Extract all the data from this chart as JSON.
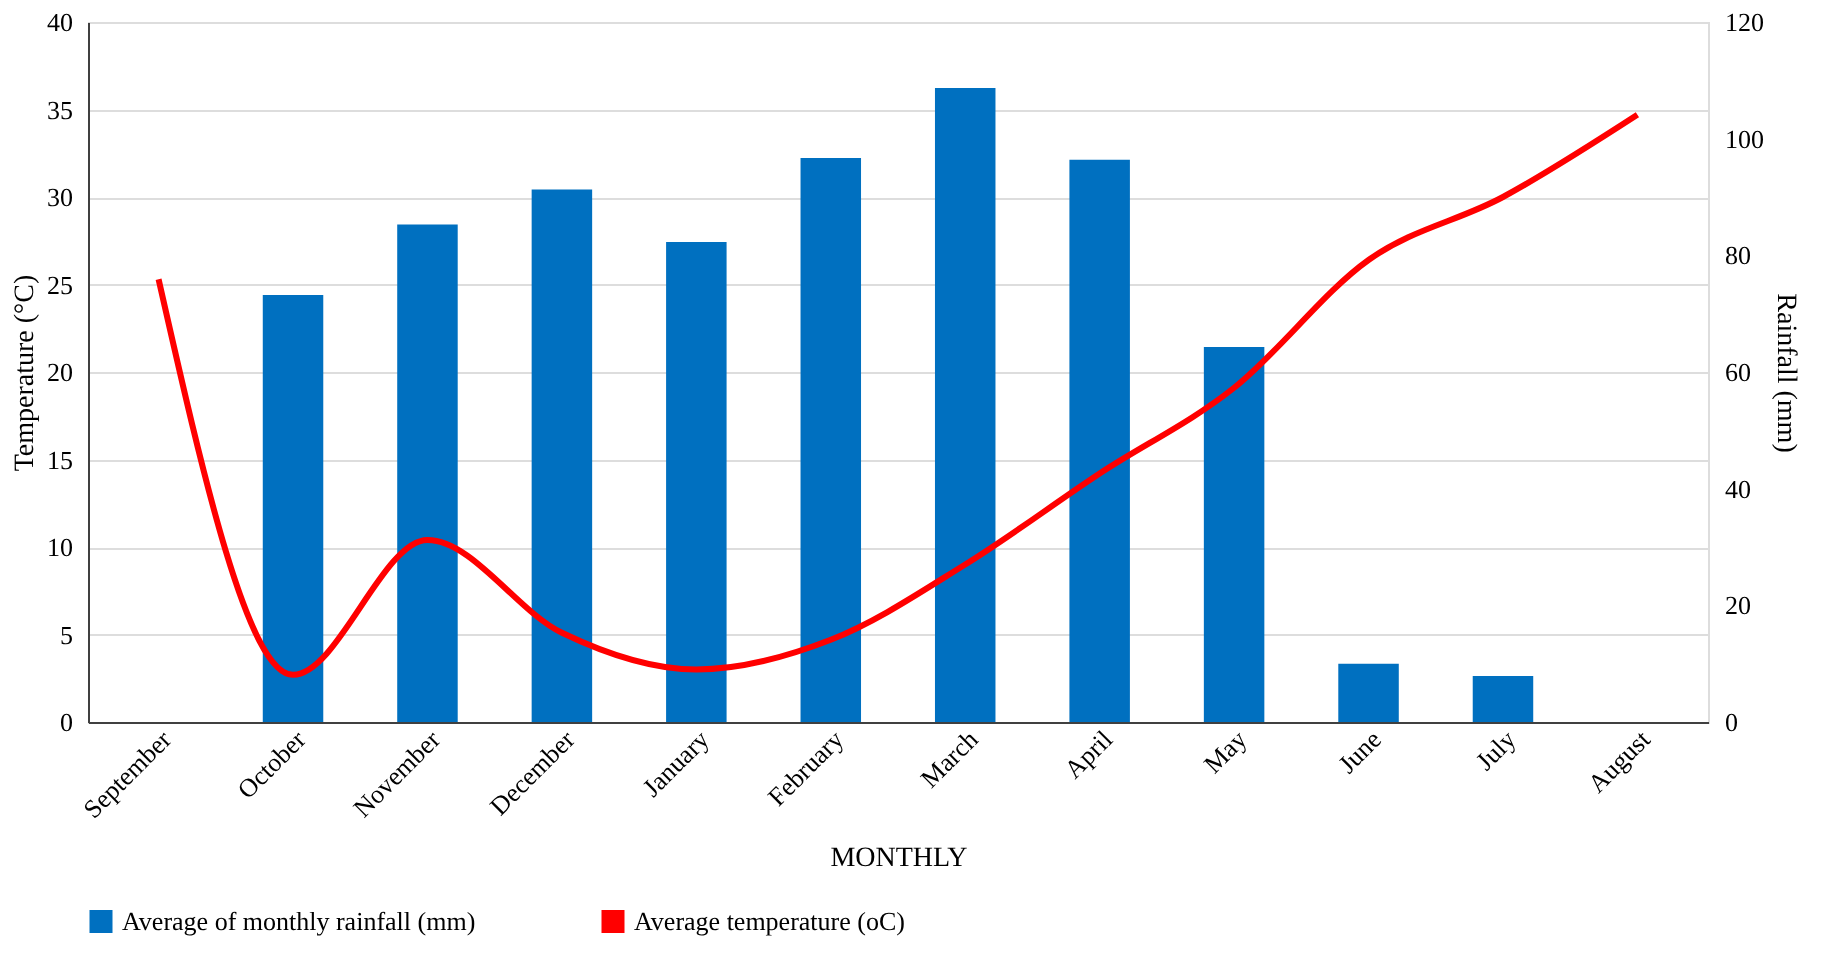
{
  "chart_data": {
    "type": "bar",
    "xlabel": "MONTHLY",
    "ylabel": "Temperature (°C)",
    "y2label": "Rainfall (mm)",
    "categories": [
      "September",
      "October",
      "November",
      "December",
      "January",
      "February",
      "March",
      "April",
      "May",
      "June",
      "July",
      "August"
    ],
    "series": [
      {
        "name": "Average of monthly rainfall (mm)",
        "axis": "y2",
        "color": "#0070c0",
        "values": [
          null,
          73.2,
          85.3,
          91.3,
          82.3,
          96.7,
          108.7,
          96.4,
          64.3,
          10.0,
          7.9,
          null
        ]
      },
      {
        "name": "Average temperature (oC)",
        "type": "line",
        "color": "#ff0000",
        "values": [
          25.3,
          2.7,
          10.4,
          5.1,
          3.0,
          4.7,
          9.0,
          14.2,
          19.1,
          26.4,
          30.0,
          34.7
        ]
      }
    ],
    "ylim": [
      0,
      40
    ],
    "yticks": [
      0,
      5,
      10,
      15,
      20,
      25,
      30,
      35,
      40
    ],
    "y2lim": [
      0,
      120
    ],
    "y2ticks": [
      0,
      20,
      40,
      60,
      80,
      100,
      120
    ],
    "grid": "y",
    "legend": "bottom"
  }
}
